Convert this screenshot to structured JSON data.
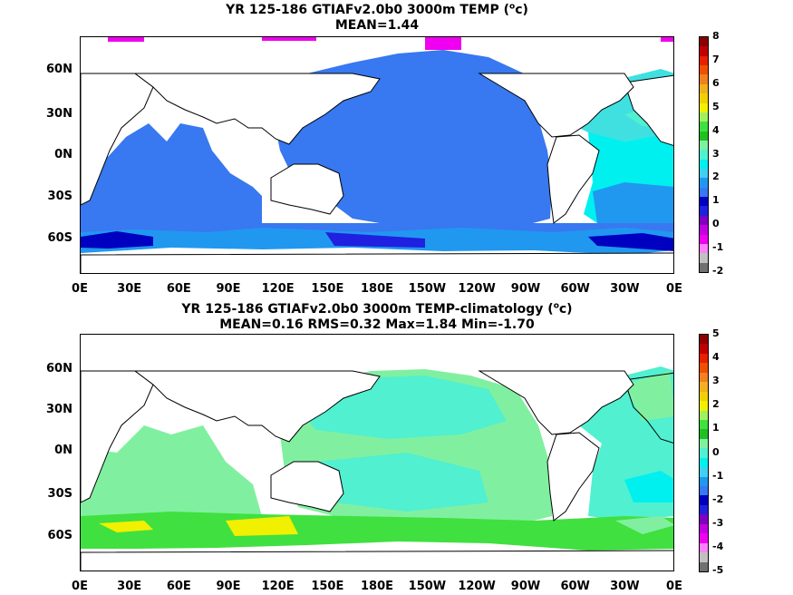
{
  "panels": [
    {
      "title_line1_pre": "YR 125-186 GTIAFv2.0b0 3000m TEMP (",
      "title_line1_sup": "o",
      "title_line1_post": "c)",
      "title_line2": "MEAN=1.44",
      "colorbar_ticks": [
        "8",
        "7",
        "6",
        "5",
        "4",
        "3",
        "2",
        "1",
        "0",
        "-1",
        "-2"
      ],
      "colorbar_colors": [
        "#8b0000",
        "#c00000",
        "#e82000",
        "#f05000",
        "#f08020",
        "#f0b020",
        "#f0d000",
        "#f0f000",
        "#a0f060",
        "#40e040",
        "#20c020",
        "#80f0a0",
        "#50f0d0",
        "#00f0f0",
        "#40d0f0",
        "#2098f0",
        "#3878f0",
        "#0000c0",
        "#2020e0",
        "#8000c0",
        "#c000e0",
        "#f000f0",
        "#ff80ff",
        "#c0c0c0",
        "#707070"
      ]
    },
    {
      "title_line1_pre": "YR 125-186 GTIAFv2.0b0 3000m TEMP-climatology (",
      "title_line1_sup": "o",
      "title_line1_post": "c)",
      "title_line2": "MEAN=0.16   RMS=0.32   Max=1.84   Min=-1.70",
      "colorbar_ticks": [
        "5",
        "4",
        "3",
        "2",
        "1",
        "0",
        "-1",
        "-2",
        "-3",
        "-4",
        "-5"
      ],
      "colorbar_colors": [
        "#8b0000",
        "#c00000",
        "#e82000",
        "#f05000",
        "#f08020",
        "#f0b020",
        "#f0d000",
        "#f0f000",
        "#a0f060",
        "#40e040",
        "#20c020",
        "#80f0a0",
        "#50f0d0",
        "#00f0f0",
        "#40d0f0",
        "#2098f0",
        "#3878f0",
        "#0000c0",
        "#2020e0",
        "#8000c0",
        "#c000e0",
        "#f000f0",
        "#ff80ff",
        "#c0c0c0",
        "#707070"
      ]
    }
  ],
  "lat_labels": [
    "60N",
    "30N",
    "0N",
    "30S",
    "60S"
  ],
  "lon_labels": [
    "0E",
    "30E",
    "60E",
    "90E",
    "120E",
    "150E",
    "180E",
    "150W",
    "120W",
    "90W",
    "60W",
    "30W",
    "0E"
  ]
}
